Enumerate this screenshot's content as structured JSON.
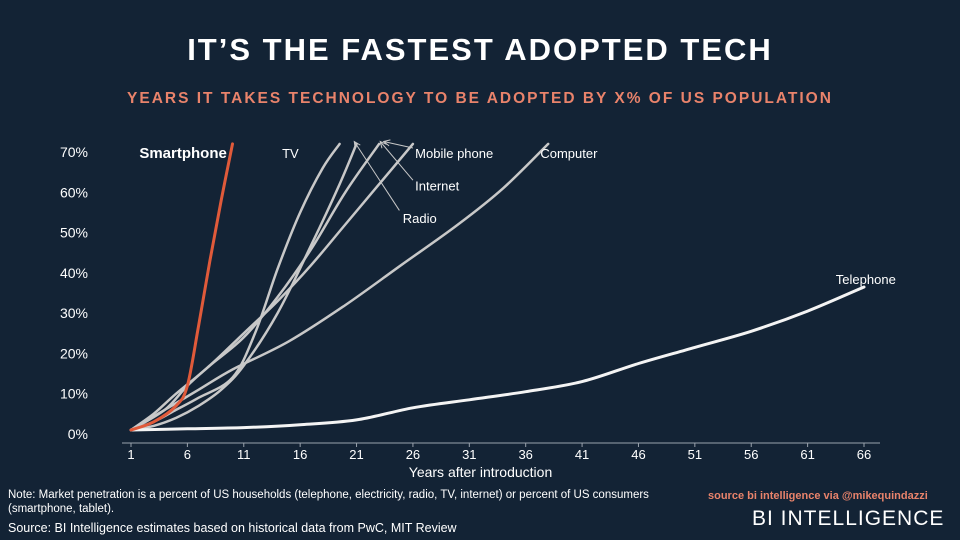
{
  "header": {
    "title": "IT’S THE FASTEST ADOPTED TECH",
    "subtitle": "YEARS IT TAKES TECHNOLOGY TO BE ADOPTED BY X% OF US POPULATION"
  },
  "footer": {
    "note": "Note: Market penetration is a percent of US households (telephone, electricity, radio, TV, internet) or percent of US consumers (smartphone, tablet).",
    "source": "Source: BI Intelligence estimates based on historical data from PwC, MIT Review",
    "credit": "source bi intelligence via @mikequindazzi",
    "brand": "BI INTELLIGENCE"
  },
  "colors": {
    "background": "#132335",
    "accent": "#e9836b",
    "smartphone": "#e05a3a",
    "series_gray": "#c8c8c8",
    "telephone": "#f4f4f4"
  },
  "chart_data": {
    "type": "line",
    "xlabel": "Years after introduction",
    "ylabel": "",
    "x_ticks": [
      1,
      6,
      11,
      16,
      21,
      26,
      31,
      36,
      41,
      46,
      51,
      56,
      61,
      66
    ],
    "y_ticks": [
      0,
      10,
      20,
      30,
      40,
      50,
      60,
      70
    ],
    "y_tick_labels": [
      "0%",
      "10%",
      "20%",
      "30%",
      "40%",
      "50%",
      "60%",
      "70%"
    ],
    "xlim": [
      1,
      66
    ],
    "ylim": [
      0,
      70
    ],
    "grid": false,
    "series": [
      {
        "name": "Smartphone",
        "color": "#e05a3a",
        "width": 3,
        "bold": true,
        "x": [
          1,
          3,
          5,
          6,
          7,
          8,
          9,
          10
        ],
        "y": [
          1,
          3,
          7,
          12,
          27,
          43,
          58,
          72
        ]
      },
      {
        "name": "TV",
        "color": "#c8c8c8",
        "width": 2.5,
        "x": [
          1,
          3,
          5,
          7,
          10,
          12,
          14,
          16,
          18,
          19.5
        ],
        "y": [
          1,
          3,
          6,
          9,
          14,
          25,
          41,
          55,
          66,
          72
        ]
      },
      {
        "name": "Radio",
        "color": "#c8c8c8",
        "width": 2.5,
        "x": [
          1,
          3,
          5,
          7,
          9,
          11,
          14,
          17,
          19.5,
          21
        ],
        "y": [
          1,
          2,
          4,
          7,
          11,
          17,
          30,
          47,
          62,
          72
        ]
      },
      {
        "name": "Internet",
        "color": "#c8c8c8",
        "width": 2.5,
        "x": [
          1,
          4,
          6,
          8,
          11,
          14,
          17,
          20,
          23
        ],
        "y": [
          1,
          6,
          12,
          17,
          24,
          34,
          46,
          60,
          72
        ]
      },
      {
        "name": "Mobile phone",
        "color": "#c8c8c8",
        "width": 2.5,
        "x": [
          1,
          3,
          5,
          8,
          11,
          14,
          17,
          20,
          23,
          26
        ],
        "y": [
          1,
          5,
          10,
          17,
          25,
          33,
          42,
          52,
          62,
          72
        ]
      },
      {
        "name": "Computer",
        "color": "#c8c8c8",
        "width": 2.5,
        "x": [
          1,
          4,
          7,
          10,
          15,
          20,
          25,
          30,
          34,
          38
        ],
        "y": [
          1,
          6,
          11,
          16,
          23,
          32,
          42,
          52,
          61,
          72
        ]
      },
      {
        "name": "Telephone",
        "color": "#f4f4f4",
        "width": 3,
        "x": [
          1,
          6,
          11,
          16,
          21,
          26,
          31,
          36,
          41,
          46,
          51,
          56,
          61,
          66
        ],
        "y": [
          1,
          1.3,
          1.6,
          2.3,
          3.5,
          6.5,
          8.5,
          10.5,
          13,
          17.5,
          21.5,
          25.5,
          30.5,
          36.5
        ]
      }
    ],
    "labels": [
      {
        "series": "Smartphone",
        "text": "Smartphone",
        "x": 9.5,
        "y": 69.7,
        "anchor": "end",
        "size": 15,
        "bold": true
      },
      {
        "series": "TV",
        "text": "TV",
        "x": 14.4,
        "y": 69.7,
        "anchor": "start",
        "size": 13
      },
      {
        "series": "Mobile phone",
        "text": "Mobile phone",
        "x": 26.2,
        "y": 69.7,
        "anchor": "start",
        "size": 13
      },
      {
        "series": "Computer",
        "text": "Computer",
        "x": 37.3,
        "y": 69.7,
        "anchor": "start",
        "size": 13
      },
      {
        "series": "Internet",
        "text": "Internet",
        "x": 26.2,
        "y": 61.7,
        "anchor": "start",
        "size": 13
      },
      {
        "series": "Radio",
        "text": "Radio",
        "x": 25.1,
        "y": 53.6,
        "anchor": "start",
        "size": 13
      },
      {
        "series": "Telephone",
        "text": "Telephone",
        "x": 63.5,
        "y": 38.5,
        "anchor": "start",
        "size": 13
      }
    ],
    "pointers": [
      {
        "from": [
          26.0,
          71.0
        ],
        "to": [
          23.4,
          72.6
        ]
      },
      {
        "from": [
          26.0,
          63.0
        ],
        "to": [
          23.1,
          72.6
        ]
      },
      {
        "from": [
          24.8,
          55.5
        ],
        "to": [
          20.8,
          72.6
        ]
      }
    ]
  }
}
